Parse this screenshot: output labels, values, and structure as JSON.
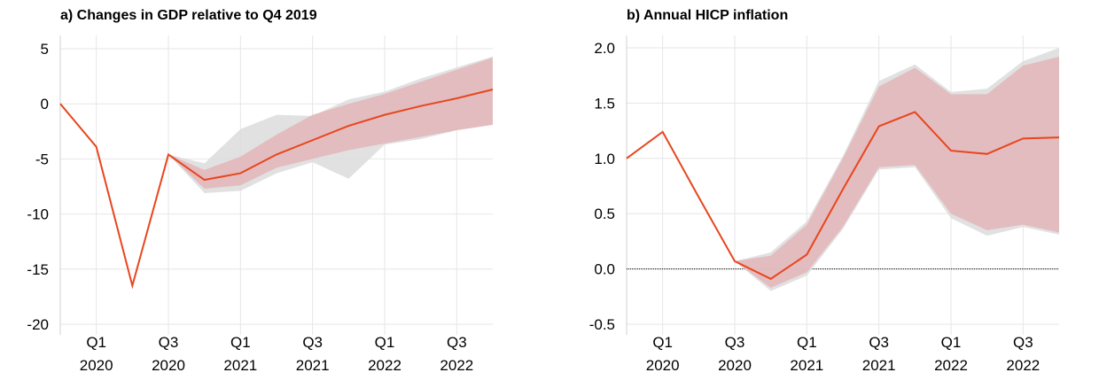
{
  "chart_data": [
    {
      "type": "line",
      "title": "a) Changes in GDP relative to Q4 2019",
      "categories": [
        null,
        "Q1 2020",
        null,
        "Q3 2020",
        null,
        "Q1 2021",
        null,
        "Q3 2021",
        null,
        "Q1 2022",
        null,
        "Q3 2022",
        null
      ],
      "series": [
        {
          "color": "#e8461e",
          "values": [
            0,
            -3.9,
            -16.5,
            -4.6,
            -6.9,
            -6.3,
            -4.6,
            -3.3,
            -2.0,
            -1.0,
            -0.2,
            0.5,
            1.3
          ]
        }
      ],
      "bands": [
        {
          "color": "#dcdcdc",
          "lower": [
            null,
            null,
            null,
            -4.6,
            -8.1,
            -7.9,
            -6.3,
            -5.3,
            -6.8,
            -3.7,
            -3.2,
            -2.4,
            -1.9
          ],
          "upper": [
            null,
            null,
            null,
            -4.6,
            -5.4,
            -2.3,
            -1.0,
            -1.1,
            0.4,
            1.1,
            2.3,
            3.3,
            4.3
          ]
        },
        {
          "color": "#e3b5b9",
          "lower": [
            null,
            null,
            null,
            -4.6,
            -7.7,
            -7.4,
            -5.8,
            -5.0,
            -4.2,
            -3.6,
            -3.0,
            -2.4,
            -1.9
          ],
          "upper": [
            null,
            null,
            null,
            -4.6,
            -6.0,
            -4.8,
            -2.8,
            -1.0,
            0.0,
            0.9,
            2.0,
            3.1,
            4.2
          ]
        }
      ],
      "ylim": [
        -20,
        5
      ],
      "yticks": [
        5,
        0,
        -5,
        -10,
        -15,
        -20
      ],
      "grid": true
    },
    {
      "type": "line",
      "title": "b) Annual HICP inflation",
      "categories": [
        null,
        "Q1 2020",
        null,
        "Q3 2020",
        null,
        "Q1 2021",
        null,
        "Q3 2021",
        null,
        "Q1 2022",
        null,
        "Q3 2022",
        null
      ],
      "series": [
        {
          "color": "#e8461e",
          "values": [
            1.0,
            1.24,
            0.65,
            0.07,
            -0.09,
            0.13,
            0.72,
            1.29,
            1.42,
            1.07,
            1.04,
            1.18,
            1.19
          ]
        }
      ],
      "bands": [
        {
          "color": "#dcdcdc",
          "lower": [
            null,
            null,
            null,
            0.07,
            -0.2,
            -0.06,
            0.36,
            0.9,
            0.92,
            0.46,
            0.3,
            0.38,
            0.31
          ],
          "upper": [
            null,
            null,
            null,
            0.07,
            0.15,
            0.43,
            1.02,
            1.7,
            1.85,
            1.6,
            1.63,
            1.88,
            2.0
          ]
        },
        {
          "color": "#e3b5b9",
          "lower": [
            null,
            null,
            null,
            0.07,
            -0.17,
            -0.03,
            0.38,
            0.92,
            0.94,
            0.5,
            0.35,
            0.4,
            0.33
          ],
          "upper": [
            null,
            null,
            null,
            0.07,
            0.12,
            0.4,
            1.0,
            1.65,
            1.82,
            1.58,
            1.58,
            1.84,
            1.92
          ]
        }
      ],
      "ylim": [
        -0.5,
        2.0
      ],
      "yticks": [
        {
          "value": 2.0,
          "label": "2.0"
        },
        1.5,
        {
          "value": 1.0,
          "label": "1.0"
        },
        0.5,
        {
          "value": 0.0,
          "label": "0.0"
        },
        -0.5
      ],
      "grid": true,
      "zero_line": true
    }
  ]
}
